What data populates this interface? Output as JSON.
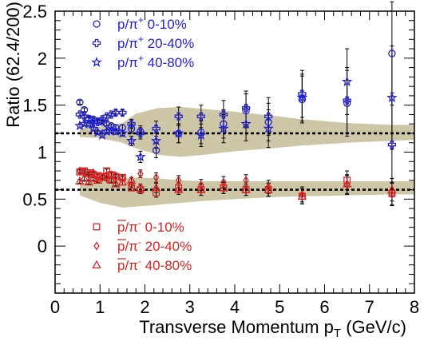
{
  "chart_data": {
    "type": "scatter",
    "xlabel": "Transverse Momentum p",
    "xlabel_sub": "T",
    "xlabel_unit": " (GeV/c)",
    "ylabel": "Ratio (62.4/200)",
    "xlim": [
      0,
      8
    ],
    "ylim": [
      -0.5,
      2.5
    ],
    "x_ticks": [
      "0",
      "1",
      "2",
      "3",
      "4",
      "5",
      "6",
      "7",
      "8"
    ],
    "y_ticks": [
      "0",
      "0.5",
      "1",
      "1.5",
      "2",
      "2.5"
    ],
    "reference_lines": [
      1.2,
      0.6
    ],
    "colors": {
      "proton": "#2222dd",
      "antiproton": "#dd2222",
      "band": "#cdc7a7",
      "error": "#000000"
    },
    "bands": [
      {
        "name": "p-band",
        "x": [
          0.55,
          1.0,
          1.5,
          1.8,
          2.3,
          2.8,
          3.3,
          4.0,
          4.8,
          5.5,
          6.5,
          7.5,
          8.0
        ],
        "upper": [
          1.26,
          1.27,
          1.31,
          1.41,
          1.47,
          1.48,
          1.46,
          1.43,
          1.39,
          1.35,
          1.31,
          1.29,
          1.29
        ],
        "lower": [
          1.16,
          1.15,
          1.1,
          1.04,
          0.97,
          0.95,
          0.97,
          1.01,
          1.04,
          1.07,
          1.1,
          1.12,
          1.13
        ]
      },
      {
        "name": "pbar-band",
        "x": [
          0.55,
          1.0,
          1.5,
          1.8,
          2.3,
          2.8,
          3.3,
          4.0,
          4.8,
          5.5,
          6.5,
          7.5,
          8.0
        ],
        "upper": [
          0.66,
          0.7,
          0.72,
          0.73,
          0.72,
          0.7,
          0.69,
          0.69,
          0.69,
          0.69,
          0.69,
          0.69,
          0.69
        ],
        "lower": [
          0.54,
          0.46,
          0.41,
          0.42,
          0.44,
          0.46,
          0.48,
          0.5,
          0.52,
          0.53,
          0.54,
          0.55,
          0.55
        ]
      }
    ],
    "series": [
      {
        "name": "p/π⁺ 0-10%",
        "marker": "circle",
        "color": "#2222dd",
        "x": [
          0.55,
          0.65,
          0.75,
          0.85,
          0.95,
          1.05,
          1.15,
          1.25,
          1.35,
          1.5,
          1.7,
          1.9,
          2.25,
          2.75,
          3.25,
          3.75,
          4.25,
          4.75,
          5.5,
          6.5,
          7.5
        ],
        "y": [
          1.53,
          1.45,
          1.36,
          1.35,
          1.33,
          1.32,
          1.3,
          1.28,
          1.26,
          1.26,
          1.25,
          1.22,
          1.02,
          1.2,
          1.21,
          1.3,
          1.44,
          1.32,
          1.56,
          1.52,
          2.05
        ],
        "err": [
          0.02,
          0.02,
          0.02,
          0.02,
          0.02,
          0.02,
          0.02,
          0.02,
          0.03,
          0.03,
          0.05,
          0.06,
          0.08,
          0.1,
          0.12,
          0.15,
          0.18,
          0.2,
          0.25,
          0.35,
          0.55
        ]
      },
      {
        "name": "p/π⁺ 20-40%",
        "marker": "cross",
        "color": "#2222dd",
        "x": [
          0.55,
          0.65,
          0.75,
          0.85,
          0.95,
          1.05,
          1.15,
          1.25,
          1.35,
          1.5,
          1.7,
          1.9,
          2.25,
          2.75,
          3.25,
          3.75,
          4.25,
          4.75,
          5.5,
          6.5,
          7.5
        ],
        "y": [
          1.4,
          1.38,
          1.35,
          1.32,
          1.32,
          1.35,
          1.38,
          1.4,
          1.42,
          1.42,
          1.3,
          1.2,
          1.25,
          1.38,
          1.38,
          1.4,
          1.47,
          1.38,
          1.62,
          1.55,
          1.08
        ],
        "err": [
          0.02,
          0.02,
          0.02,
          0.02,
          0.02,
          0.02,
          0.02,
          0.02,
          0.03,
          0.03,
          0.05,
          0.06,
          0.08,
          0.1,
          0.12,
          0.15,
          0.18,
          0.2,
          0.25,
          0.35,
          0.55
        ]
      },
      {
        "name": "p/π⁺ 40-80%",
        "marker": "star",
        "color": "#2222dd",
        "x": [
          0.55,
          0.65,
          0.75,
          0.85,
          0.95,
          1.05,
          1.15,
          1.25,
          1.35,
          1.5,
          1.7,
          1.9,
          2.25,
          2.75,
          3.25,
          3.75,
          4.25,
          4.75,
          5.5,
          6.5,
          7.5
        ],
        "y": [
          1.28,
          1.3,
          1.3,
          1.25,
          1.21,
          1.18,
          1.22,
          1.23,
          1.22,
          1.2,
          1.12,
          0.95,
          1.12,
          1.2,
          1.18,
          1.25,
          1.3,
          1.25,
          1.58,
          1.75,
          1.58
        ],
        "err": [
          0.02,
          0.02,
          0.02,
          0.02,
          0.02,
          0.02,
          0.02,
          0.02,
          0.03,
          0.03,
          0.05,
          0.06,
          0.08,
          0.1,
          0.12,
          0.15,
          0.18,
          0.2,
          0.25,
          0.35,
          0.55
        ]
      },
      {
        "name": "p̄/π⁻ 0-10%",
        "marker": "square",
        "color": "#dd2222",
        "x": [
          0.55,
          0.65,
          0.75,
          0.85,
          0.95,
          1.05,
          1.15,
          1.25,
          1.35,
          1.5,
          1.7,
          1.9,
          2.25,
          2.75,
          3.25,
          3.75,
          4.25,
          4.75,
          5.5,
          6.5,
          7.5
        ],
        "y": [
          0.79,
          0.8,
          0.78,
          0.76,
          0.75,
          0.74,
          0.8,
          0.76,
          0.74,
          0.73,
          0.62,
          0.6,
          0.57,
          0.62,
          0.6,
          0.62,
          0.6,
          0.6,
          0.53,
          0.7,
          0.56
        ],
        "err": [
          0.02,
          0.02,
          0.02,
          0.02,
          0.02,
          0.02,
          0.02,
          0.02,
          0.02,
          0.03,
          0.03,
          0.04,
          0.05,
          0.05,
          0.06,
          0.06,
          0.06,
          0.07,
          0.08,
          0.1,
          0.12
        ]
      },
      {
        "name": "p̄/π⁻ 20-40%",
        "marker": "diamond",
        "color": "#dd2222",
        "x": [
          0.55,
          0.65,
          0.75,
          0.85,
          0.95,
          1.05,
          1.15,
          1.25,
          1.35,
          1.5,
          1.7,
          1.9,
          2.25,
          2.75,
          3.25,
          3.75,
          4.25,
          4.75,
          5.5,
          6.5,
          7.5
        ],
        "y": [
          0.8,
          0.78,
          0.76,
          0.78,
          0.74,
          0.73,
          0.72,
          0.76,
          0.75,
          0.72,
          0.65,
          0.77,
          0.73,
          0.7,
          0.65,
          0.68,
          0.7,
          0.63,
          0.55,
          0.65,
          0.55
        ],
        "err": [
          0.02,
          0.02,
          0.02,
          0.02,
          0.02,
          0.02,
          0.02,
          0.02,
          0.02,
          0.03,
          0.03,
          0.04,
          0.05,
          0.05,
          0.06,
          0.06,
          0.06,
          0.07,
          0.08,
          0.1,
          0.12
        ]
      },
      {
        "name": "p̄/π⁻ 40-80%",
        "marker": "triangle",
        "color": "#dd2222",
        "x": [
          0.55,
          0.65,
          0.75,
          0.85,
          0.95,
          1.05,
          1.15,
          1.25,
          1.35,
          1.5,
          1.7,
          1.9,
          2.25,
          2.75,
          3.25,
          3.75,
          4.25,
          4.75,
          5.5,
          6.5,
          7.5
        ],
        "y": [
          0.69,
          0.72,
          0.68,
          0.72,
          0.7,
          0.73,
          0.75,
          0.7,
          0.66,
          0.68,
          0.7,
          0.62,
          0.62,
          0.6,
          0.6,
          0.62,
          0.6,
          0.6,
          0.53,
          0.66,
          0.6
        ],
        "err": [
          0.02,
          0.02,
          0.02,
          0.02,
          0.02,
          0.02,
          0.02,
          0.02,
          0.02,
          0.03,
          0.03,
          0.04,
          0.05,
          0.05,
          0.06,
          0.06,
          0.06,
          0.07,
          0.08,
          0.1,
          0.12
        ]
      }
    ],
    "legends": [
      {
        "position": "top-left",
        "entries": [
          {
            "prefix": "p/π",
            "sup": "+",
            "suffix": " 0-10%",
            "marker": "circle",
            "color": "#2222dd"
          },
          {
            "prefix": "p/π",
            "sup": "+",
            "suffix": " 20-40%",
            "marker": "cross",
            "color": "#2222dd"
          },
          {
            "prefix": "p/π",
            "sup": "+",
            "suffix": " 40-80%",
            "marker": "star",
            "color": "#2222dd"
          }
        ]
      },
      {
        "position": "bottom-left",
        "entries": [
          {
            "prefix": "p/π",
            "sup": "-",
            "suffix": " 0-10%",
            "marker": "square",
            "color": "#dd2222",
            "overline": true
          },
          {
            "prefix": "p/π",
            "sup": "-",
            "suffix": " 20-40%",
            "marker": "diamond",
            "color": "#dd2222",
            "overline": true
          },
          {
            "prefix": "p/π",
            "sup": "-",
            "suffix": " 40-80%",
            "marker": "triangle",
            "color": "#dd2222",
            "overline": true
          }
        ]
      }
    ]
  }
}
